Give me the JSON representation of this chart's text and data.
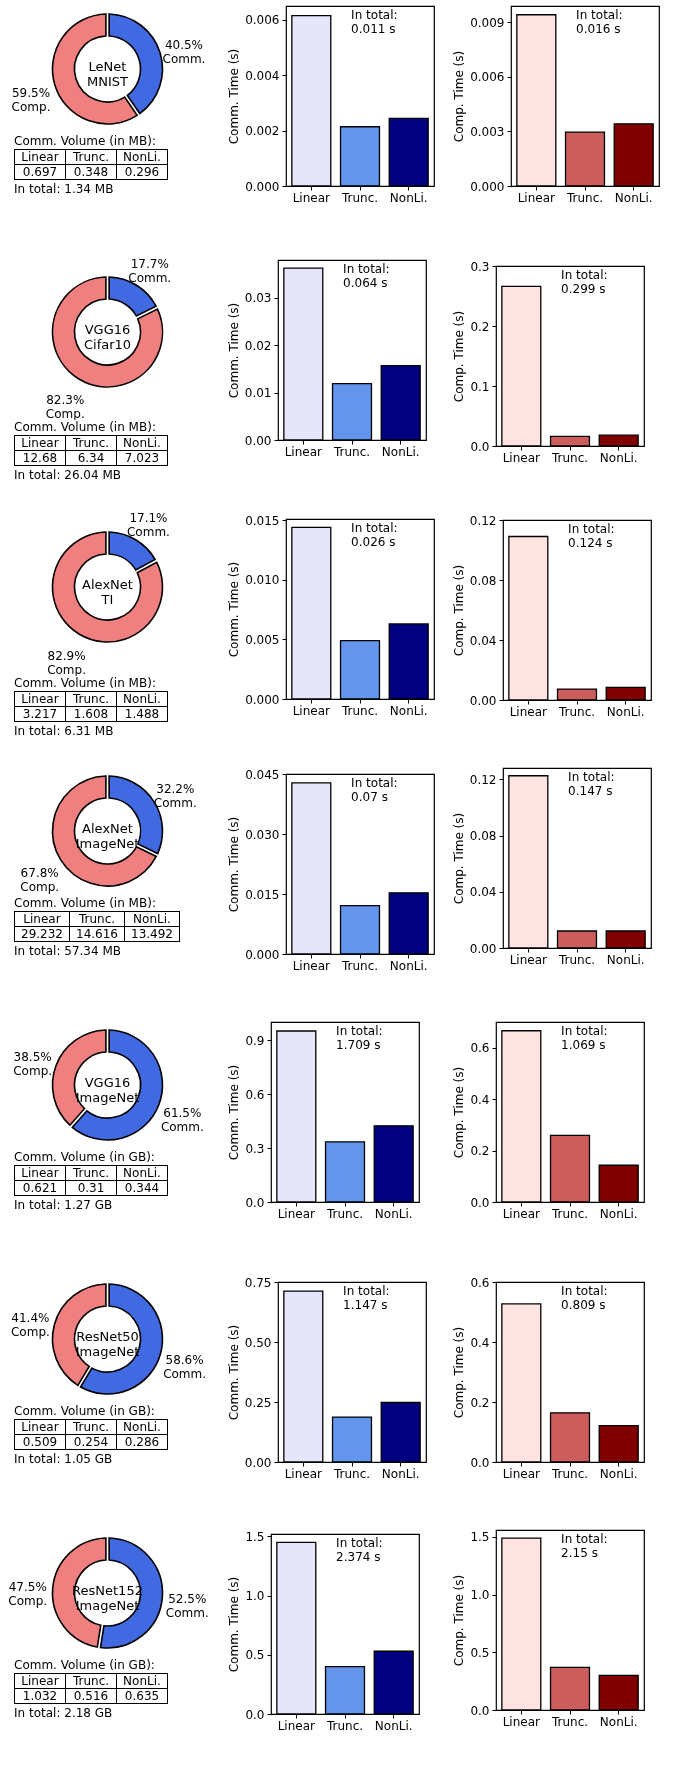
{
  "chart_data": [
    {
      "type": "donut",
      "title": "LeNet MNIST",
      "categories": [
        "Comm.",
        "Comp."
      ],
      "values": [
        40.5,
        59.5
      ],
      "colors": [
        "#4169e1",
        "#f08080"
      ],
      "value_labels": [
        "40.5%",
        "59.5%"
      ],
      "annotations": [
        "Comm. Volume (in MB):",
        "Linear",
        "Trunc.",
        "NonLi.",
        "0.697",
        "0.348",
        "0.296",
        "In total: 1.34 MB"
      ]
    },
    {
      "type": "bar",
      "categories": [
        "Linear",
        "Trunc.",
        "NonLi."
      ],
      "values": [
        0.00615,
        0.00214,
        0.00244
      ],
      "colors": [
        "#e6e6fa",
        "#6495ed",
        "#000080"
      ],
      "ylabel": "Comm. Time (s)",
      "ylim": [
        0,
        0.0065
      ],
      "yticks": [
        {
          "value": 0,
          "label": "0.000"
        },
        0.002,
        0.004,
        0.006
      ],
      "annotations": [
        "In total:\n0.011 s"
      ]
    },
    {
      "type": "bar",
      "categories": [
        "Linear",
        "Trunc.",
        "NonLi."
      ],
      "values": [
        0.00942,
        0.00296,
        0.00342
      ],
      "colors": [
        "#ffe4e1",
        "#cd5c5c",
        "#800000"
      ],
      "ylabel": "Comp. Time (s)",
      "ylim": [
        0,
        0.0099
      ],
      "yticks": [
        {
          "value": 0,
          "label": "0.000"
        },
        0.003,
        0.006,
        0.009
      ],
      "annotations": [
        "In total:\n0.016 s"
      ]
    },
    {
      "type": "donut",
      "title": "VGG16 Cifar10",
      "categories": [
        "Comm.",
        "Comp."
      ],
      "values": [
        17.7,
        82.3
      ],
      "colors": [
        "#4169e1",
        "#f08080"
      ],
      "value_labels": [
        "17.7%",
        "82.3%"
      ],
      "annotations": [
        "Comm. Volume (in MB):",
        "Linear",
        "Trunc.",
        "NonLi.",
        "12.68",
        "6.34",
        "7.023",
        "In total: 26.04 MB"
      ]
    },
    {
      "type": "bar",
      "categories": [
        "Linear",
        "Trunc.",
        "NonLi."
      ],
      "values": [
        0.0363,
        0.0119,
        0.0157
      ],
      "colors": [
        "#e6e6fa",
        "#6495ed",
        "#000080"
      ],
      "ylabel": "Comm. Time (s)",
      "ylim": [
        0,
        0.038
      ],
      "yticks": [
        {
          "value": 0,
          "label": "0.00"
        },
        {
          "value": 0.01,
          "label": "0.01"
        },
        {
          "value": 0.02,
          "label": "0.02"
        },
        {
          "value": 0.03,
          "label": "0.03"
        }
      ],
      "annotations": [
        "In total:\n0.064 s"
      ]
    },
    {
      "type": "bar",
      "categories": [
        "Linear",
        "Trunc.",
        "NonLi."
      ],
      "values": [
        0.266,
        0.016,
        0.018
      ],
      "colors": [
        "#ffe4e1",
        "#cd5c5c",
        "#800000"
      ],
      "ylabel": "Comp. Time (s)",
      "ylim": [
        0,
        0.3
      ],
      "yticks": [
        {
          "value": 0,
          "label": "0.0"
        },
        0.1,
        0.2,
        0.3
      ],
      "annotations": [
        "In total:\n0.299 s"
      ]
    },
    {
      "type": "donut",
      "title": "AlexNet TI",
      "categories": [
        "Comm.",
        "Comp."
      ],
      "values": [
        17.1,
        82.9
      ],
      "colors": [
        "#4169e1",
        "#f08080"
      ],
      "value_labels": [
        "17.1%",
        "82.9%"
      ],
      "annotations": [
        "Comm. Volume (in MB):",
        "Linear",
        "Trunc.",
        "NonLi.",
        "3.217",
        "1.608",
        "1.488",
        "In total: 6.31 MB"
      ]
    },
    {
      "type": "bar",
      "categories": [
        "Linear",
        "Trunc.",
        "NonLi."
      ],
      "values": [
        0.0144,
        0.0049,
        0.0063
      ],
      "colors": [
        "#e6e6fa",
        "#6495ed",
        "#000080"
      ],
      "ylabel": "Comm. Time (s)",
      "ylim": [
        0,
        0.0151
      ],
      "yticks": [
        {
          "value": 0,
          "label": "0.000"
        },
        0.005,
        {
          "value": 0.01,
          "label": "0.010"
        },
        0.015
      ],
      "annotations": [
        "In total:\n0.026 s"
      ]
    },
    {
      "type": "bar",
      "categories": [
        "Linear",
        "Trunc.",
        "NonLi."
      ],
      "values": [
        0.109,
        0.0073,
        0.0084
      ],
      "colors": [
        "#ffe4e1",
        "#cd5c5c",
        "#800000"
      ],
      "ylabel": "Comp. Time (s)",
      "ylim": [
        0,
        0.12
      ],
      "yticks": [
        {
          "value": 0,
          "label": "0.00"
        },
        0.04,
        0.08,
        0.12
      ],
      "annotations": [
        "In total:\n0.124 s"
      ]
    },
    {
      "type": "donut",
      "title": "AlexNet ImageNet",
      "categories": [
        "Comm.",
        "Comp."
      ],
      "values": [
        32.2,
        67.8
      ],
      "colors": [
        "#4169e1",
        "#f08080"
      ],
      "value_labels": [
        "32.2%",
        "67.8%"
      ],
      "annotations": [
        "Comm. Volume (in MB):",
        "Linear",
        "Trunc.",
        "NonLi.",
        "29.232",
        "14.616",
        "13.492",
        "In total: 57.34 MB"
      ]
    },
    {
      "type": "bar",
      "categories": [
        "Linear",
        "Trunc.",
        "NonLi."
      ],
      "values": [
        0.0428,
        0.0121,
        0.0153
      ],
      "colors": [
        "#e6e6fa",
        "#6495ed",
        "#000080"
      ],
      "ylabel": "Comm. Time (s)",
      "ylim": [
        0,
        0.045
      ],
      "yticks": [
        {
          "value": 0,
          "label": "0.000"
        },
        0.015,
        {
          "value": 0.03,
          "label": "0.030"
        },
        0.045
      ],
      "annotations": [
        "In total:\n0.07 s"
      ]
    },
    {
      "type": "bar",
      "categories": [
        "Linear",
        "Trunc.",
        "NonLi."
      ],
      "values": [
        0.1225,
        0.0121,
        0.0121
      ],
      "colors": [
        "#ffe4e1",
        "#cd5c5c",
        "#800000"
      ],
      "ylabel": "Comp. Time (s)",
      "ylim": [
        0,
        0.128
      ],
      "yticks": [
        {
          "value": 0,
          "label": "0.00"
        },
        0.04,
        0.08,
        0.12
      ],
      "annotations": [
        "In total:\n0.147 s"
      ]
    },
    {
      "type": "donut",
      "title": "VGG16 ImageNet",
      "categories": [
        "Comm.",
        "Comp."
      ],
      "values": [
        61.5,
        38.5
      ],
      "colors": [
        "#4169e1",
        "#f08080"
      ],
      "value_labels": [
        "61.5%",
        "38.5%"
      ],
      "annotations": [
        "Comm. Volume (in GB):",
        "Linear",
        "Trunc.",
        "NonLi.",
        "0.621",
        "0.31",
        "0.344",
        "In total: 1.27 GB"
      ]
    },
    {
      "type": "bar",
      "categories": [
        "Linear",
        "Trunc.",
        "NonLi."
      ],
      "values": [
        0.95,
        0.334,
        0.423
      ],
      "colors": [
        "#e6e6fa",
        "#6495ed",
        "#000080"
      ],
      "ylabel": "Comm. Time (s)",
      "ylim": [
        0,
        1.0
      ],
      "yticks": [
        {
          "value": 0,
          "label": "0.0"
        },
        0.3,
        0.6,
        0.9
      ],
      "annotations": [
        "In total:\n1.709 s"
      ]
    },
    {
      "type": "bar",
      "categories": [
        "Linear",
        "Trunc.",
        "NonLi."
      ],
      "values": [
        0.666,
        0.259,
        0.143
      ],
      "colors": [
        "#ffe4e1",
        "#cd5c5c",
        "#800000"
      ],
      "ylabel": "Comp. Time (s)",
      "ylim": [
        0,
        0.7
      ],
      "yticks": [
        {
          "value": 0,
          "label": "0.0"
        },
        0.2,
        0.4,
        0.6
      ],
      "annotations": [
        "In total:\n1.069 s"
      ]
    },
    {
      "type": "donut",
      "title": "ResNet50 ImageNet",
      "categories": [
        "Comm.",
        "Comp."
      ],
      "values": [
        58.6,
        41.4
      ],
      "colors": [
        "#4169e1",
        "#f08080"
      ],
      "value_labels": [
        "58.6%",
        "41.4%"
      ],
      "annotations": [
        "Comm. Volume (in GB):",
        "Linear",
        "Trunc.",
        "NonLi.",
        "0.509",
        "0.254",
        "0.286",
        "In total: 1.05 GB"
      ]
    },
    {
      "type": "bar",
      "categories": [
        "Linear",
        "Trunc.",
        "NonLi."
      ],
      "values": [
        0.712,
        0.187,
        0.248
      ],
      "colors": [
        "#e6e6fa",
        "#6495ed",
        "#000080"
      ],
      "ylabel": "Comm. Time (s)",
      "ylim": [
        0,
        0.75
      ],
      "yticks": [
        {
          "value": 0,
          "label": "0.00"
        },
        0.25,
        {
          "value": 0.5,
          "label": "0.50"
        },
        0.75
      ],
      "annotations": [
        "In total:\n1.147 s"
      ]
    },
    {
      "type": "bar",
      "categories": [
        "Linear",
        "Trunc.",
        "NonLi."
      ],
      "values": [
        0.527,
        0.164,
        0.121
      ],
      "colors": [
        "#ffe4e1",
        "#cd5c5c",
        "#800000"
      ],
      "ylabel": "Comp. Time (s)",
      "ylim": [
        0,
        0.6
      ],
      "yticks": [
        {
          "value": 0,
          "label": "0.0"
        },
        0.2,
        0.4,
        0.6
      ],
      "annotations": [
        "In total:\n0.809 s"
      ]
    },
    {
      "type": "donut",
      "title": "ResNet152 ImageNet",
      "categories": [
        "Comm.",
        "Comp."
      ],
      "values": [
        52.5,
        47.5
      ],
      "colors": [
        "#4169e1",
        "#f08080"
      ],
      "value_labels": [
        "52.5%",
        "47.5%"
      ],
      "annotations": [
        "Comm. Volume (in GB):",
        "Linear",
        "Trunc.",
        "NonLi.",
        "1.032",
        "0.516",
        "0.635",
        "In total: 2.18 GB"
      ]
    },
    {
      "type": "bar",
      "categories": [
        "Linear",
        "Trunc.",
        "NonLi."
      ],
      "values": [
        1.45,
        0.4,
        0.53
      ],
      "colors": [
        "#e6e6fa",
        "#6495ed",
        "#000080"
      ],
      "ylabel": "Comm. Time (s)",
      "ylim": [
        0,
        1.52
      ],
      "yticks": [
        {
          "value": 0,
          "label": "0.0"
        },
        0.5,
        {
          "value": 1,
          "label": "1.0"
        },
        1.5
      ],
      "annotations": [
        "In total:\n2.374 s"
      ]
    },
    {
      "type": "bar",
      "categories": [
        "Linear",
        "Trunc.",
        "NonLi."
      ],
      "values": [
        1.49,
        0.37,
        0.3
      ],
      "colors": [
        "#ffe4e1",
        "#cd5c5c",
        "#800000"
      ],
      "ylabel": "Comp. Time (s)",
      "ylim": [
        0,
        1.56
      ],
      "yticks": [
        {
          "value": 0,
          "label": "0.0"
        },
        0.5,
        {
          "value": 1,
          "label": "1.0"
        },
        1.5
      ],
      "annotations": [
        "In total:\n2.15 s"
      ]
    }
  ]
}
